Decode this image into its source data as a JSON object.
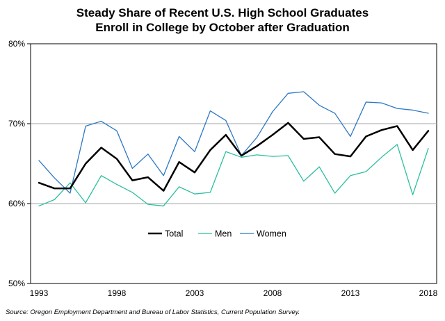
{
  "chart_data": {
    "type": "line",
    "title_lines": [
      "Steady Share of Recent U.S. High School Graduates",
      "Enroll in College by October after Graduation"
    ],
    "x": [
      1993,
      1994,
      1995,
      1996,
      1997,
      1998,
      1999,
      2000,
      2001,
      2002,
      2003,
      2004,
      2005,
      2006,
      2007,
      2008,
      2009,
      2010,
      2011,
      2012,
      2013,
      2014,
      2015,
      2016,
      2017,
      2018
    ],
    "x_tick_values": [
      1993,
      1998,
      2003,
      2008,
      2013,
      2018
    ],
    "x_tick_labels": [
      "1993",
      "1998",
      "2003",
      "2008",
      "2013",
      "2018"
    ],
    "y_tick_values": [
      50,
      60,
      70,
      80
    ],
    "y_tick_labels": [
      "50%",
      "60%",
      "70%",
      "80%"
    ],
    "ylim": [
      50,
      80
    ],
    "xlim": [
      1993,
      2018
    ],
    "gridlines_y": [
      60,
      70
    ],
    "legend_position": "center",
    "series": [
      {
        "name": "Total",
        "color": "#000000",
        "width": 2.5,
        "values": [
          62.6,
          61.9,
          61.9,
          65.0,
          67.0,
          65.6,
          62.9,
          63.3,
          61.6,
          65.2,
          63.9,
          66.7,
          68.6,
          66.0,
          67.2,
          68.6,
          70.1,
          68.1,
          68.3,
          66.2,
          65.9,
          68.4,
          69.2,
          69.7,
          66.7,
          69.1
        ]
      },
      {
        "name": "Men",
        "color": "#2bbf9e",
        "width": 1.3,
        "values": [
          59.7,
          60.5,
          62.6,
          60.1,
          63.5,
          62.4,
          61.4,
          59.9,
          59.7,
          62.1,
          61.2,
          61.4,
          66.5,
          65.8,
          66.1,
          65.9,
          66.0,
          62.8,
          64.6,
          61.3,
          63.5,
          64.0,
          65.8,
          67.4,
          61.1,
          66.9
        ]
      },
      {
        "name": "Women",
        "color": "#2d78c4",
        "width": 1.3,
        "values": [
          65.4,
          63.2,
          61.3,
          69.7,
          70.3,
          69.1,
          64.4,
          66.2,
          63.5,
          68.4,
          66.5,
          71.6,
          70.4,
          66.0,
          68.3,
          71.5,
          73.8,
          74.0,
          72.3,
          71.3,
          68.4,
          72.7,
          72.6,
          71.9,
          71.7,
          71.3
        ]
      }
    ]
  },
  "source_text": "Source: Oregon Employment Department and Bureau of Labor Statistics, Current Population Survey."
}
